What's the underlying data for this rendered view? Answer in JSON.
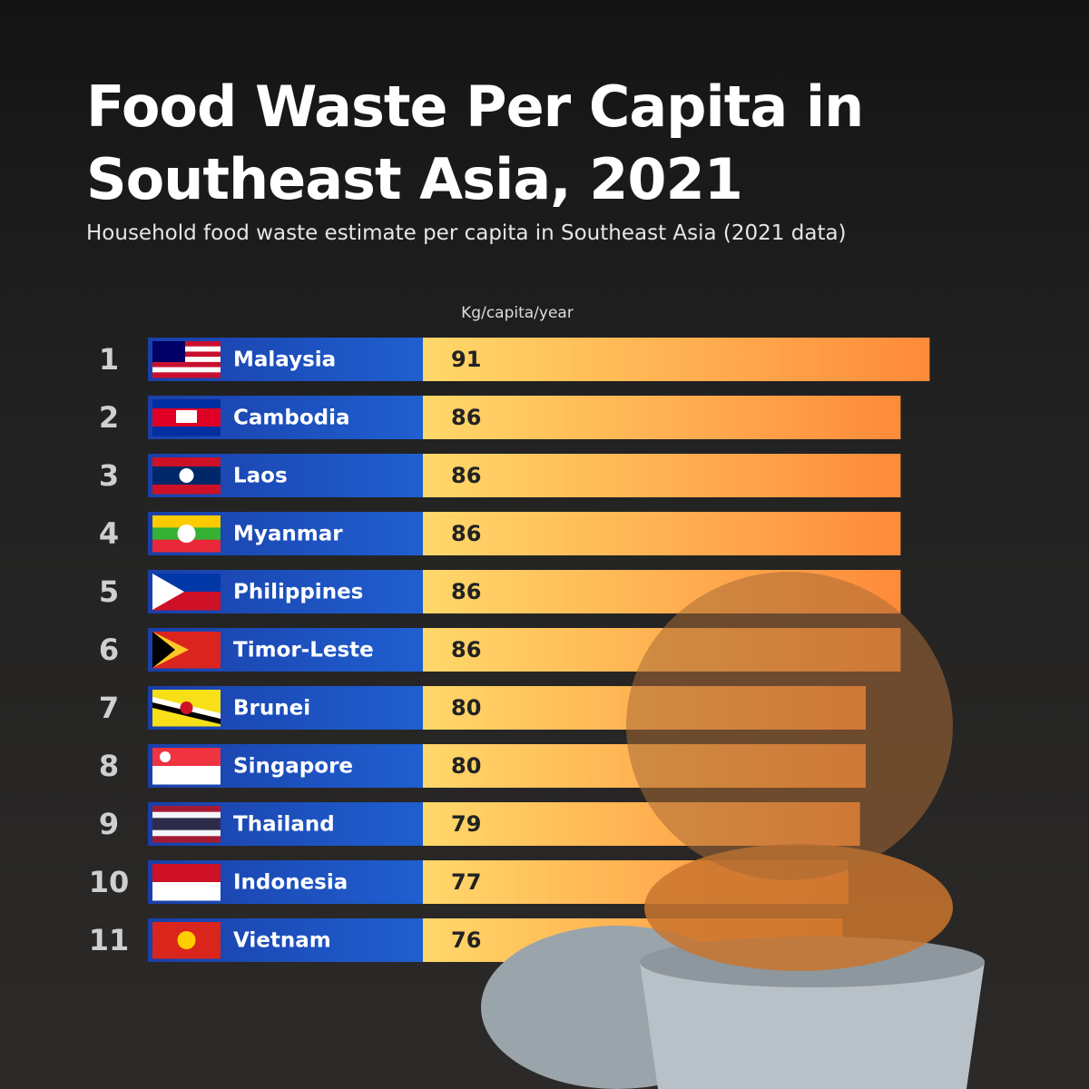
{
  "chart_data": {
    "type": "bar",
    "orientation": "horizontal",
    "title": "Food Waste Per Capita in Southeast Asia, 2021",
    "subtitle": "Household food waste estimate per capita in Southeast Asia (2021 data)",
    "unit_label": "Kg/capita/year",
    "ranks": [
      1,
      2,
      3,
      4,
      5,
      6,
      7,
      8,
      9,
      10,
      11
    ],
    "categories": [
      "Malaysia",
      "Cambodia",
      "Laos",
      "Myanmar",
      "Philippines",
      "Timor-Leste",
      "Brunei",
      "Singapore",
      "Thailand",
      "Indonesia",
      "Vietnam"
    ],
    "values": [
      91,
      86,
      86,
      86,
      86,
      86,
      80,
      80,
      79,
      77,
      76
    ]
  }
}
